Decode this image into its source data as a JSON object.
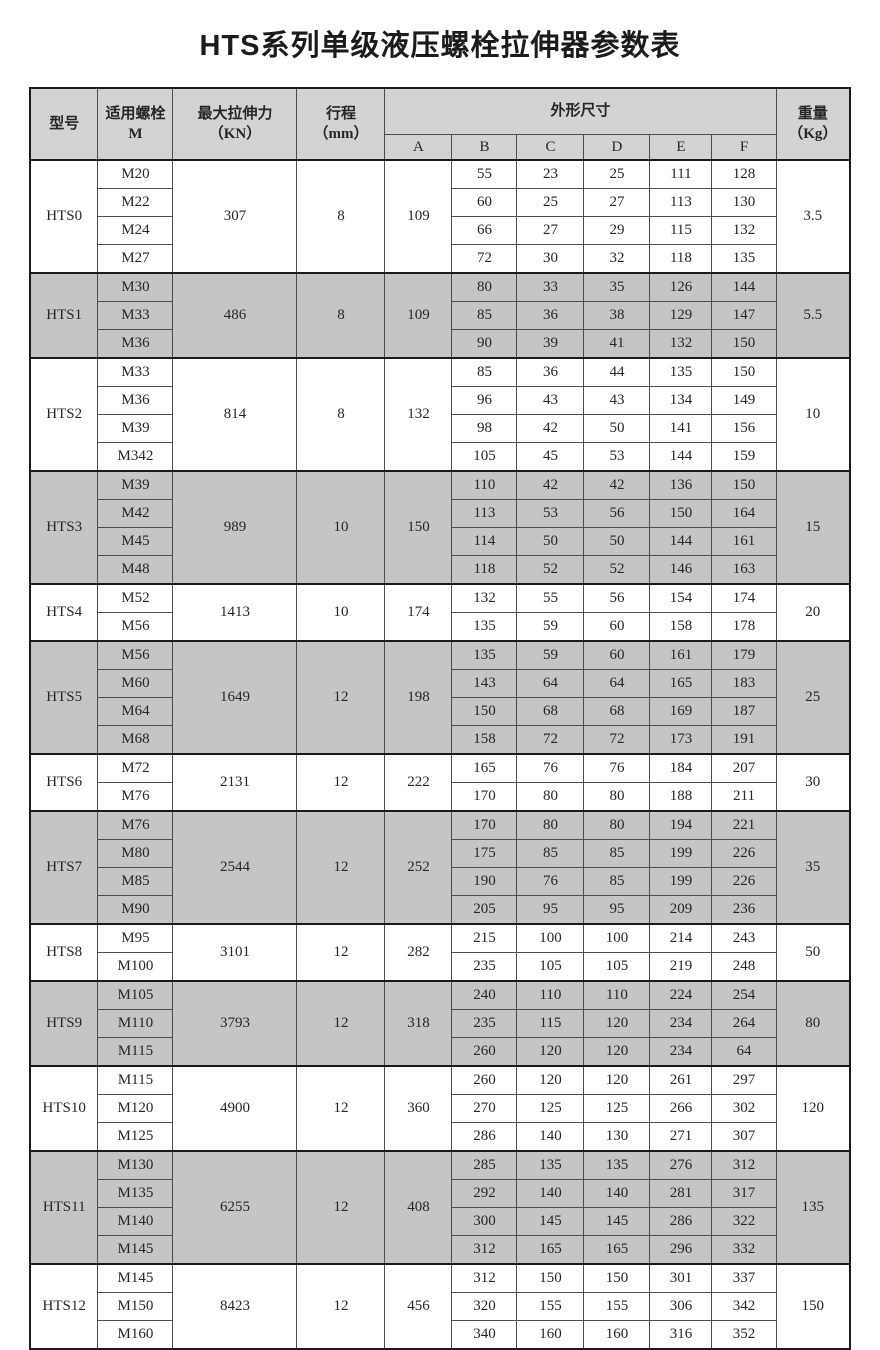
{
  "page": {
    "title": "HTS系列单级液压螺栓拉伸器参数表"
  },
  "colors": {
    "header_bg": "#d3d3d3",
    "band_bg": "#c5c5c5",
    "border": "#4d4d4d"
  },
  "table": {
    "headers": {
      "model": "型号",
      "bolt_line1": "适用螺栓",
      "bolt_line2": "M",
      "force_line1": "最大拉伸力",
      "force_line2": "（KN）",
      "stroke_line1": "行程",
      "stroke_line2": "（mm）",
      "dimensions": "外形尺寸",
      "dim_cols": [
        "A",
        "B",
        "C",
        "D",
        "E",
        "F"
      ],
      "weight_line1": "重量",
      "weight_line2": "（Kg）"
    },
    "groups": [
      {
        "model": "HTS0",
        "force": "307",
        "stroke": "8",
        "a": "109",
        "weight": "3.5",
        "bolts": [
          "M20",
          "M22",
          "M24",
          "M27"
        ],
        "dims": [
          [
            "55",
            "23",
            "25",
            "111",
            "128"
          ],
          [
            "60",
            "25",
            "27",
            "113",
            "130"
          ],
          [
            "66",
            "27",
            "29",
            "115",
            "132"
          ],
          [
            "72",
            "30",
            "32",
            "118",
            "135"
          ]
        ]
      },
      {
        "model": "HTS1",
        "force": "486",
        "stroke": "8",
        "a": "109",
        "weight": "5.5",
        "bolts": [
          "M30",
          "M33",
          "M36"
        ],
        "dims": [
          [
            "80",
            "33",
            "35",
            "126",
            "144"
          ],
          [
            "85",
            "36",
            "38",
            "129",
            "147"
          ],
          [
            "90",
            "39",
            "41",
            "132",
            "150"
          ]
        ]
      },
      {
        "model": "HTS2",
        "force": "814",
        "stroke": "8",
        "a": "132",
        "weight": "10",
        "bolts": [
          "M33",
          "M36",
          "M39",
          "M342"
        ],
        "dims": [
          [
            "85",
            "36",
            "44",
            "135",
            "150"
          ],
          [
            "96",
            "43",
            "43",
            "134",
            "149"
          ],
          [
            "98",
            "42",
            "50",
            "141",
            "156"
          ],
          [
            "105",
            "45",
            "53",
            "144",
            "159"
          ]
        ]
      },
      {
        "model": "HTS3",
        "force": "989",
        "stroke": "10",
        "a": "150",
        "weight": "15",
        "bolts": [
          "M39",
          "M42",
          "M45",
          "M48"
        ],
        "dims": [
          [
            "110",
            "42",
            "42",
            "136",
            "150"
          ],
          [
            "113",
            "53",
            "56",
            "150",
            "164"
          ],
          [
            "114",
            "50",
            "50",
            "144",
            "161"
          ],
          [
            "118",
            "52",
            "52",
            "146",
            "163"
          ]
        ]
      },
      {
        "model": "HTS4",
        "force": "1413",
        "stroke": "10",
        "a": "174",
        "weight": "20",
        "bolts": [
          "M52",
          "M56"
        ],
        "dims": [
          [
            "132",
            "55",
            "56",
            "154",
            "174"
          ],
          [
            "135",
            "59",
            "60",
            "158",
            "178"
          ]
        ]
      },
      {
        "model": "HTS5",
        "force": "1649",
        "stroke": "12",
        "a": "198",
        "weight": "25",
        "bolts": [
          "M56",
          "M60",
          "M64",
          "M68"
        ],
        "dims": [
          [
            "135",
            "59",
            "60",
            "161",
            "179"
          ],
          [
            "143",
            "64",
            "64",
            "165",
            "183"
          ],
          [
            "150",
            "68",
            "68",
            "169",
            "187"
          ],
          [
            "158",
            "72",
            "72",
            "173",
            "191"
          ]
        ]
      },
      {
        "model": "HTS6",
        "force": "2131",
        "stroke": "12",
        "a": "222",
        "weight": "30",
        "bolts": [
          "M72",
          "M76"
        ],
        "dims": [
          [
            "165",
            "76",
            "76",
            "184",
            "207"
          ],
          [
            "170",
            "80",
            "80",
            "188",
            "211"
          ]
        ]
      },
      {
        "model": "HTS7",
        "force": "2544",
        "stroke": "12",
        "a": "252",
        "weight": "35",
        "bolts": [
          "M76",
          "M80",
          "M85",
          "M90"
        ],
        "dims": [
          [
            "170",
            "80",
            "80",
            "194",
            "221"
          ],
          [
            "175",
            "85",
            "85",
            "199",
            "226"
          ],
          [
            "190",
            "76",
            "85",
            "199",
            "226"
          ],
          [
            "205",
            "95",
            "95",
            "209",
            "236"
          ]
        ]
      },
      {
        "model": "HTS8",
        "force": "3101",
        "stroke": "12",
        "a": "282",
        "weight": "50",
        "bolts": [
          "M95",
          "M100"
        ],
        "dims": [
          [
            "215",
            "100",
            "100",
            "214",
            "243"
          ],
          [
            "235",
            "105",
            "105",
            "219",
            "248"
          ]
        ]
      },
      {
        "model": "HTS9",
        "force": "3793",
        "stroke": "12",
        "a": "318",
        "weight": "80",
        "bolts": [
          "M105",
          "M110",
          "M115"
        ],
        "dims": [
          [
            "240",
            "110",
            "110",
            "224",
            "254"
          ],
          [
            "235",
            "115",
            "120",
            "234",
            "264"
          ],
          [
            "260",
            "120",
            "120",
            "234",
            "64"
          ]
        ]
      },
      {
        "model": "HTS10",
        "force": "4900",
        "stroke": "12",
        "a": "360",
        "weight": "120",
        "bolts": [
          "M115",
          "M120",
          "M125"
        ],
        "dims": [
          [
            "260",
            "120",
            "120",
            "261",
            "297"
          ],
          [
            "270",
            "125",
            "125",
            "266",
            "302"
          ],
          [
            "286",
            "140",
            "130",
            "271",
            "307"
          ]
        ]
      },
      {
        "model": "HTS11",
        "force": "6255",
        "stroke": "12",
        "a": "408",
        "weight": "135",
        "bolts": [
          "M130",
          "M135",
          "M140",
          "M145"
        ],
        "dims": [
          [
            "285",
            "135",
            "135",
            "276",
            "312"
          ],
          [
            "292",
            "140",
            "140",
            "281",
            "317"
          ],
          [
            "300",
            "145",
            "145",
            "286",
            "322"
          ],
          [
            "312",
            "165",
            "165",
            "296",
            "332"
          ]
        ]
      },
      {
        "model": "HTS12",
        "force": "8423",
        "stroke": "12",
        "a": "456",
        "weight": "150",
        "bolts": [
          "M145",
          "M150",
          "M160"
        ],
        "dims": [
          [
            "312",
            "150",
            "150",
            "301",
            "337"
          ],
          [
            "320",
            "155",
            "155",
            "306",
            "342"
          ],
          [
            "340",
            "160",
            "160",
            "316",
            "352"
          ]
        ]
      }
    ]
  }
}
